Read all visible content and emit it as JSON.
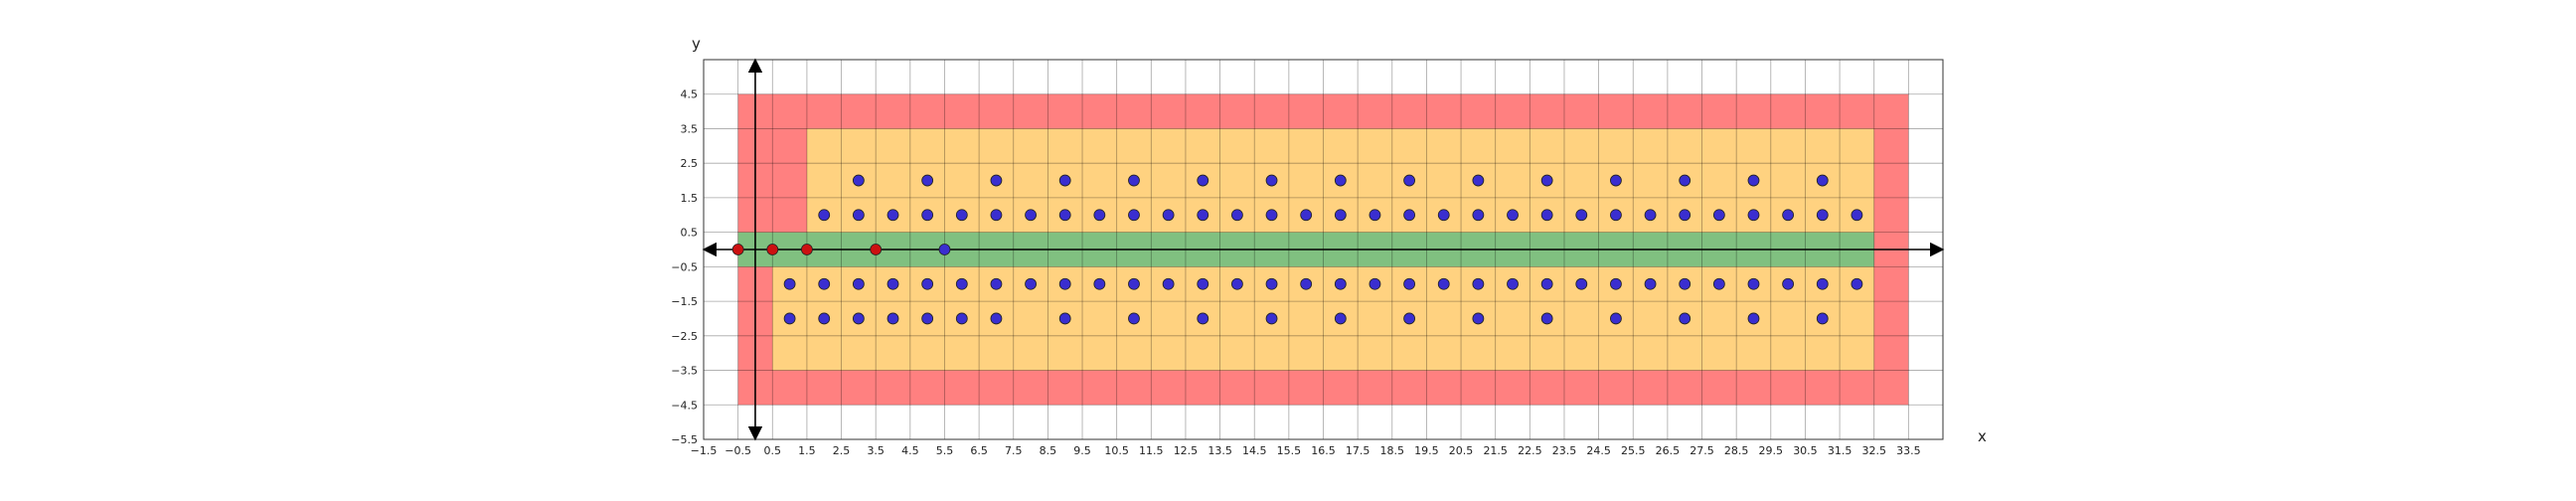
{
  "chart_data": {
    "type": "scatter",
    "xlabel": "x",
    "ylabel": "y",
    "xlim": [
      -1.5,
      34.5
    ],
    "ylim": [
      -5.5,
      5.5
    ],
    "x_ticks": [
      -1.5,
      -0.5,
      0.5,
      1.5,
      2.5,
      3.5,
      4.5,
      5.5,
      6.5,
      7.5,
      8.5,
      9.5,
      10.5,
      11.5,
      12.5,
      13.5,
      14.5,
      15.5,
      16.5,
      17.5,
      18.5,
      19.5,
      20.5,
      21.5,
      22.5,
      23.5,
      24.5,
      25.5,
      26.5,
      27.5,
      28.5,
      29.5,
      30.5,
      31.5,
      32.5,
      33.5
    ],
    "x_tick_labels": [
      "−1.5",
      "−0.5",
      "0.5",
      "1.5",
      "2.5",
      "3.5",
      "4.5",
      "5.5",
      "6.5",
      "7.5",
      "8.5",
      "9.5",
      "10.5",
      "11.5",
      "12.5",
      "13.5",
      "14.5",
      "15.5",
      "16.5",
      "17.5",
      "18.5",
      "19.5",
      "20.5",
      "21.5",
      "22.5",
      "23.5",
      "24.5",
      "25.5",
      "26.5",
      "27.5",
      "28.5",
      "29.5",
      "30.5",
      "31.5",
      "32.5",
      "33.5"
    ],
    "y_ticks": [
      -5.5,
      -4.5,
      -3.5,
      -2.5,
      -1.5,
      -0.5,
      0.5,
      1.5,
      2.5,
      3.5,
      4.5
    ],
    "y_tick_labels": [
      "−5.5",
      "−4.5",
      "−3.5",
      "−2.5",
      "−1.5",
      "−0.5",
      "0.5",
      "1.5",
      "2.5",
      "3.5",
      "4.5"
    ],
    "grid": true,
    "regions": [
      {
        "name": "outer",
        "color": "#ff8080",
        "x": [
          -0.5,
          33.5
        ],
        "y": [
          -4.5,
          4.5
        ]
      },
      {
        "name": "upper",
        "color": "#ffd280",
        "x": [
          1.5,
          32.5
        ],
        "y": [
          0.5,
          3.5
        ]
      },
      {
        "name": "lower",
        "color": "#ffd280",
        "x": [
          0.5,
          32.5
        ],
        "y": [
          -3.5,
          -0.5
        ]
      },
      {
        "name": "band",
        "color": "#80c080",
        "x": [
          -0.5,
          32.5
        ],
        "y": [
          -0.5,
          0.5
        ]
      }
    ],
    "series": [
      {
        "color": "#3a2ed0",
        "points": [
          [
            3,
            2
          ],
          [
            5,
            2
          ],
          [
            7,
            2
          ],
          [
            9,
            2
          ],
          [
            11,
            2
          ],
          [
            13,
            2
          ],
          [
            15,
            2
          ],
          [
            17,
            2
          ],
          [
            19,
            2
          ],
          [
            21,
            2
          ],
          [
            23,
            2
          ],
          [
            25,
            2
          ],
          [
            27,
            2
          ],
          [
            29,
            2
          ],
          [
            31,
            2
          ],
          [
            2,
            1
          ],
          [
            3,
            1
          ],
          [
            4,
            1
          ],
          [
            5,
            1
          ],
          [
            6,
            1
          ],
          [
            7,
            1
          ],
          [
            8,
            1
          ],
          [
            9,
            1
          ],
          [
            10,
            1
          ],
          [
            11,
            1
          ],
          [
            12,
            1
          ],
          [
            13,
            1
          ],
          [
            14,
            1
          ],
          [
            15,
            1
          ],
          [
            16,
            1
          ],
          [
            17,
            1
          ],
          [
            18,
            1
          ],
          [
            19,
            1
          ],
          [
            20,
            1
          ],
          [
            21,
            1
          ],
          [
            22,
            1
          ],
          [
            23,
            1
          ],
          [
            24,
            1
          ],
          [
            25,
            1
          ],
          [
            26,
            1
          ],
          [
            27,
            1
          ],
          [
            28,
            1
          ],
          [
            29,
            1
          ],
          [
            30,
            1
          ],
          [
            31,
            1
          ],
          [
            32,
            1
          ],
          [
            1,
            -1
          ],
          [
            2,
            -1
          ],
          [
            3,
            -1
          ],
          [
            4,
            -1
          ],
          [
            5,
            -1
          ],
          [
            6,
            -1
          ],
          [
            7,
            -1
          ],
          [
            8,
            -1
          ],
          [
            9,
            -1
          ],
          [
            10,
            -1
          ],
          [
            11,
            -1
          ],
          [
            12,
            -1
          ],
          [
            13,
            -1
          ],
          [
            14,
            -1
          ],
          [
            15,
            -1
          ],
          [
            16,
            -1
          ],
          [
            17,
            -1
          ],
          [
            18,
            -1
          ],
          [
            19,
            -1
          ],
          [
            20,
            -1
          ],
          [
            21,
            -1
          ],
          [
            22,
            -1
          ],
          [
            23,
            -1
          ],
          [
            24,
            -1
          ],
          [
            25,
            -1
          ],
          [
            26,
            -1
          ],
          [
            27,
            -1
          ],
          [
            28,
            -1
          ],
          [
            29,
            -1
          ],
          [
            30,
            -1
          ],
          [
            31,
            -1
          ],
          [
            32,
            -1
          ],
          [
            1,
            -2
          ],
          [
            2,
            -2
          ],
          [
            3,
            -2
          ],
          [
            4,
            -2
          ],
          [
            5,
            -2
          ],
          [
            6,
            -2
          ],
          [
            7,
            -2
          ],
          [
            9,
            -2
          ],
          [
            11,
            -2
          ],
          [
            13,
            -2
          ],
          [
            15,
            -2
          ],
          [
            17,
            -2
          ],
          [
            19,
            -2
          ],
          [
            21,
            -2
          ],
          [
            23,
            -2
          ],
          [
            25,
            -2
          ],
          [
            27,
            -2
          ],
          [
            29,
            -2
          ],
          [
            31,
            -2
          ],
          [
            5.5,
            0
          ]
        ]
      },
      {
        "color": "#cc1111",
        "points": [
          [
            -0.5,
            0
          ],
          [
            0.5,
            0
          ],
          [
            1.5,
            0
          ],
          [
            3.5,
            0
          ]
        ]
      }
    ]
  }
}
